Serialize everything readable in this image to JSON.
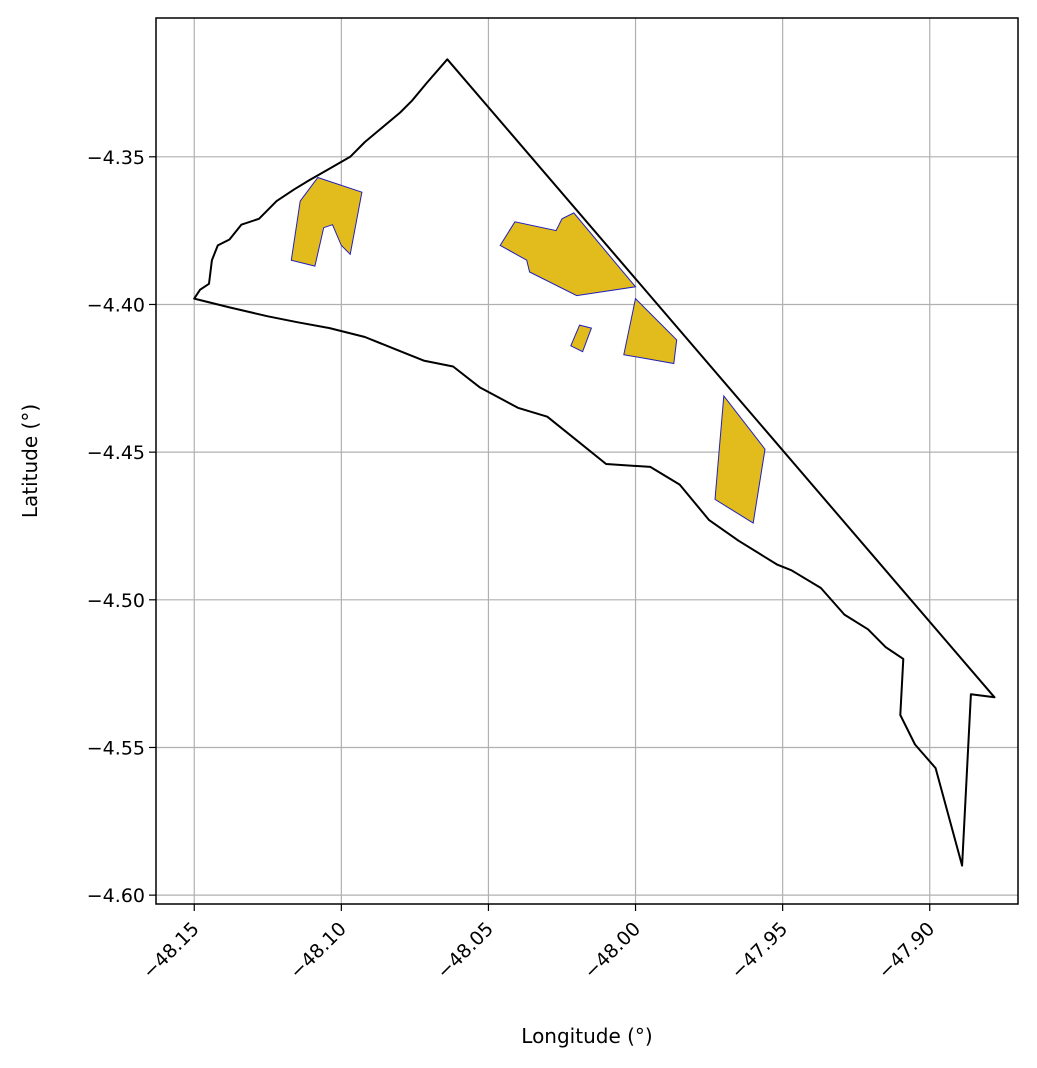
{
  "chart_data": {
    "type": "map",
    "xlabel": "Longitude (°)",
    "ylabel": "Latitude (°)",
    "xlim": [
      -48.163,
      -47.87
    ],
    "ylim": [
      -4.603,
      -4.303
    ],
    "grid": true,
    "x_ticks": [
      -48.15,
      -48.1,
      -48.05,
      -48.0,
      -47.95,
      -47.9
    ],
    "x_tick_labels": [
      "−48.15",
      "−48.10",
      "−48.05",
      "−48.00",
      "−47.95",
      "−47.90"
    ],
    "y_ticks": [
      -4.35,
      -4.4,
      -4.45,
      -4.5,
      -4.55,
      -4.6
    ],
    "y_tick_labels": [
      "−4.35",
      "−4.40",
      "−4.45",
      "−4.50",
      "−4.55",
      "−4.60"
    ],
    "boundary": {
      "color": "#000000",
      "fill": "none",
      "coords": [
        [
          -48.064,
          -4.317
        ],
        [
          -47.878,
          -4.533
        ],
        [
          -47.886,
          -4.532
        ],
        [
          -47.889,
          -4.59
        ],
        [
          -47.898,
          -4.557
        ],
        [
          -47.905,
          -4.549
        ],
        [
          -47.91,
          -4.539
        ],
        [
          -47.909,
          -4.52
        ],
        [
          -47.915,
          -4.516
        ],
        [
          -47.921,
          -4.51
        ],
        [
          -47.929,
          -4.505
        ],
        [
          -47.937,
          -4.496
        ],
        [
          -47.947,
          -4.49
        ],
        [
          -47.952,
          -4.488
        ],
        [
          -47.965,
          -4.48
        ],
        [
          -47.975,
          -4.473
        ],
        [
          -47.985,
          -4.461
        ],
        [
          -47.995,
          -4.455
        ],
        [
          -48.01,
          -4.454
        ],
        [
          -48.02,
          -4.446
        ],
        [
          -48.03,
          -4.438
        ],
        [
          -48.04,
          -4.435
        ],
        [
          -48.053,
          -4.428
        ],
        [
          -48.062,
          -4.421
        ],
        [
          -48.072,
          -4.419
        ],
        [
          -48.082,
          -4.415
        ],
        [
          -48.092,
          -4.411
        ],
        [
          -48.104,
          -4.408
        ],
        [
          -48.115,
          -4.406
        ],
        [
          -48.125,
          -4.404
        ],
        [
          -48.138,
          -4.401
        ],
        [
          -48.15,
          -4.398
        ],
        [
          -48.148,
          -4.395
        ],
        [
          -48.145,
          -4.393
        ],
        [
          -48.144,
          -4.385
        ],
        [
          -48.142,
          -4.38
        ],
        [
          -48.138,
          -4.378
        ],
        [
          -48.134,
          -4.373
        ],
        [
          -48.128,
          -4.371
        ],
        [
          -48.122,
          -4.365
        ],
        [
          -48.116,
          -4.361
        ],
        [
          -48.111,
          -4.358
        ],
        [
          -48.104,
          -4.354
        ],
        [
          -48.097,
          -4.35
        ],
        [
          -48.092,
          -4.345
        ],
        [
          -48.086,
          -4.34
        ],
        [
          -48.08,
          -4.335
        ],
        [
          -48.076,
          -4.331
        ],
        [
          -48.071,
          -4.325
        ],
        [
          -48.064,
          -4.317
        ]
      ]
    },
    "polygons": {
      "fill": "#e1bc1c",
      "edge": "#2020c0",
      "shapes": [
        {
          "coords": [
            [
              -48.117,
              -4.385
            ],
            [
              -48.114,
              -4.365
            ],
            [
              -48.108,
              -4.357
            ],
            [
              -48.093,
              -4.362
            ],
            [
              -48.097,
              -4.383
            ],
            [
              -48.1,
              -4.38
            ],
            [
              -48.103,
              -4.373
            ],
            [
              -48.106,
              -4.374
            ],
            [
              -48.109,
              -4.387
            ]
          ]
        },
        {
          "coords": [
            [
              -48.046,
              -4.38
            ],
            [
              -48.041,
              -4.372
            ],
            [
              -48.027,
              -4.375
            ],
            [
              -48.025,
              -4.371
            ],
            [
              -48.021,
              -4.369
            ],
            [
              -48.0,
              -4.394
            ],
            [
              -48.02,
              -4.397
            ],
            [
              -48.036,
              -4.389
            ],
            [
              -48.037,
              -4.385
            ]
          ]
        },
        {
          "coords": [
            [
              -48.004,
              -4.417
            ],
            [
              -48.0,
              -4.398
            ],
            [
              -47.986,
              -4.412
            ],
            [
              -47.987,
              -4.42
            ]
          ]
        },
        {
          "coords": [
            [
              -48.022,
              -4.414
            ],
            [
              -48.019,
              -4.407
            ],
            [
              -48.015,
              -4.408
            ],
            [
              -48.018,
              -4.416
            ]
          ]
        },
        {
          "coords": [
            [
              -47.973,
              -4.466
            ],
            [
              -47.97,
              -4.431
            ],
            [
              -47.956,
              -4.449
            ],
            [
              -47.96,
              -4.474
            ]
          ]
        }
      ]
    }
  }
}
